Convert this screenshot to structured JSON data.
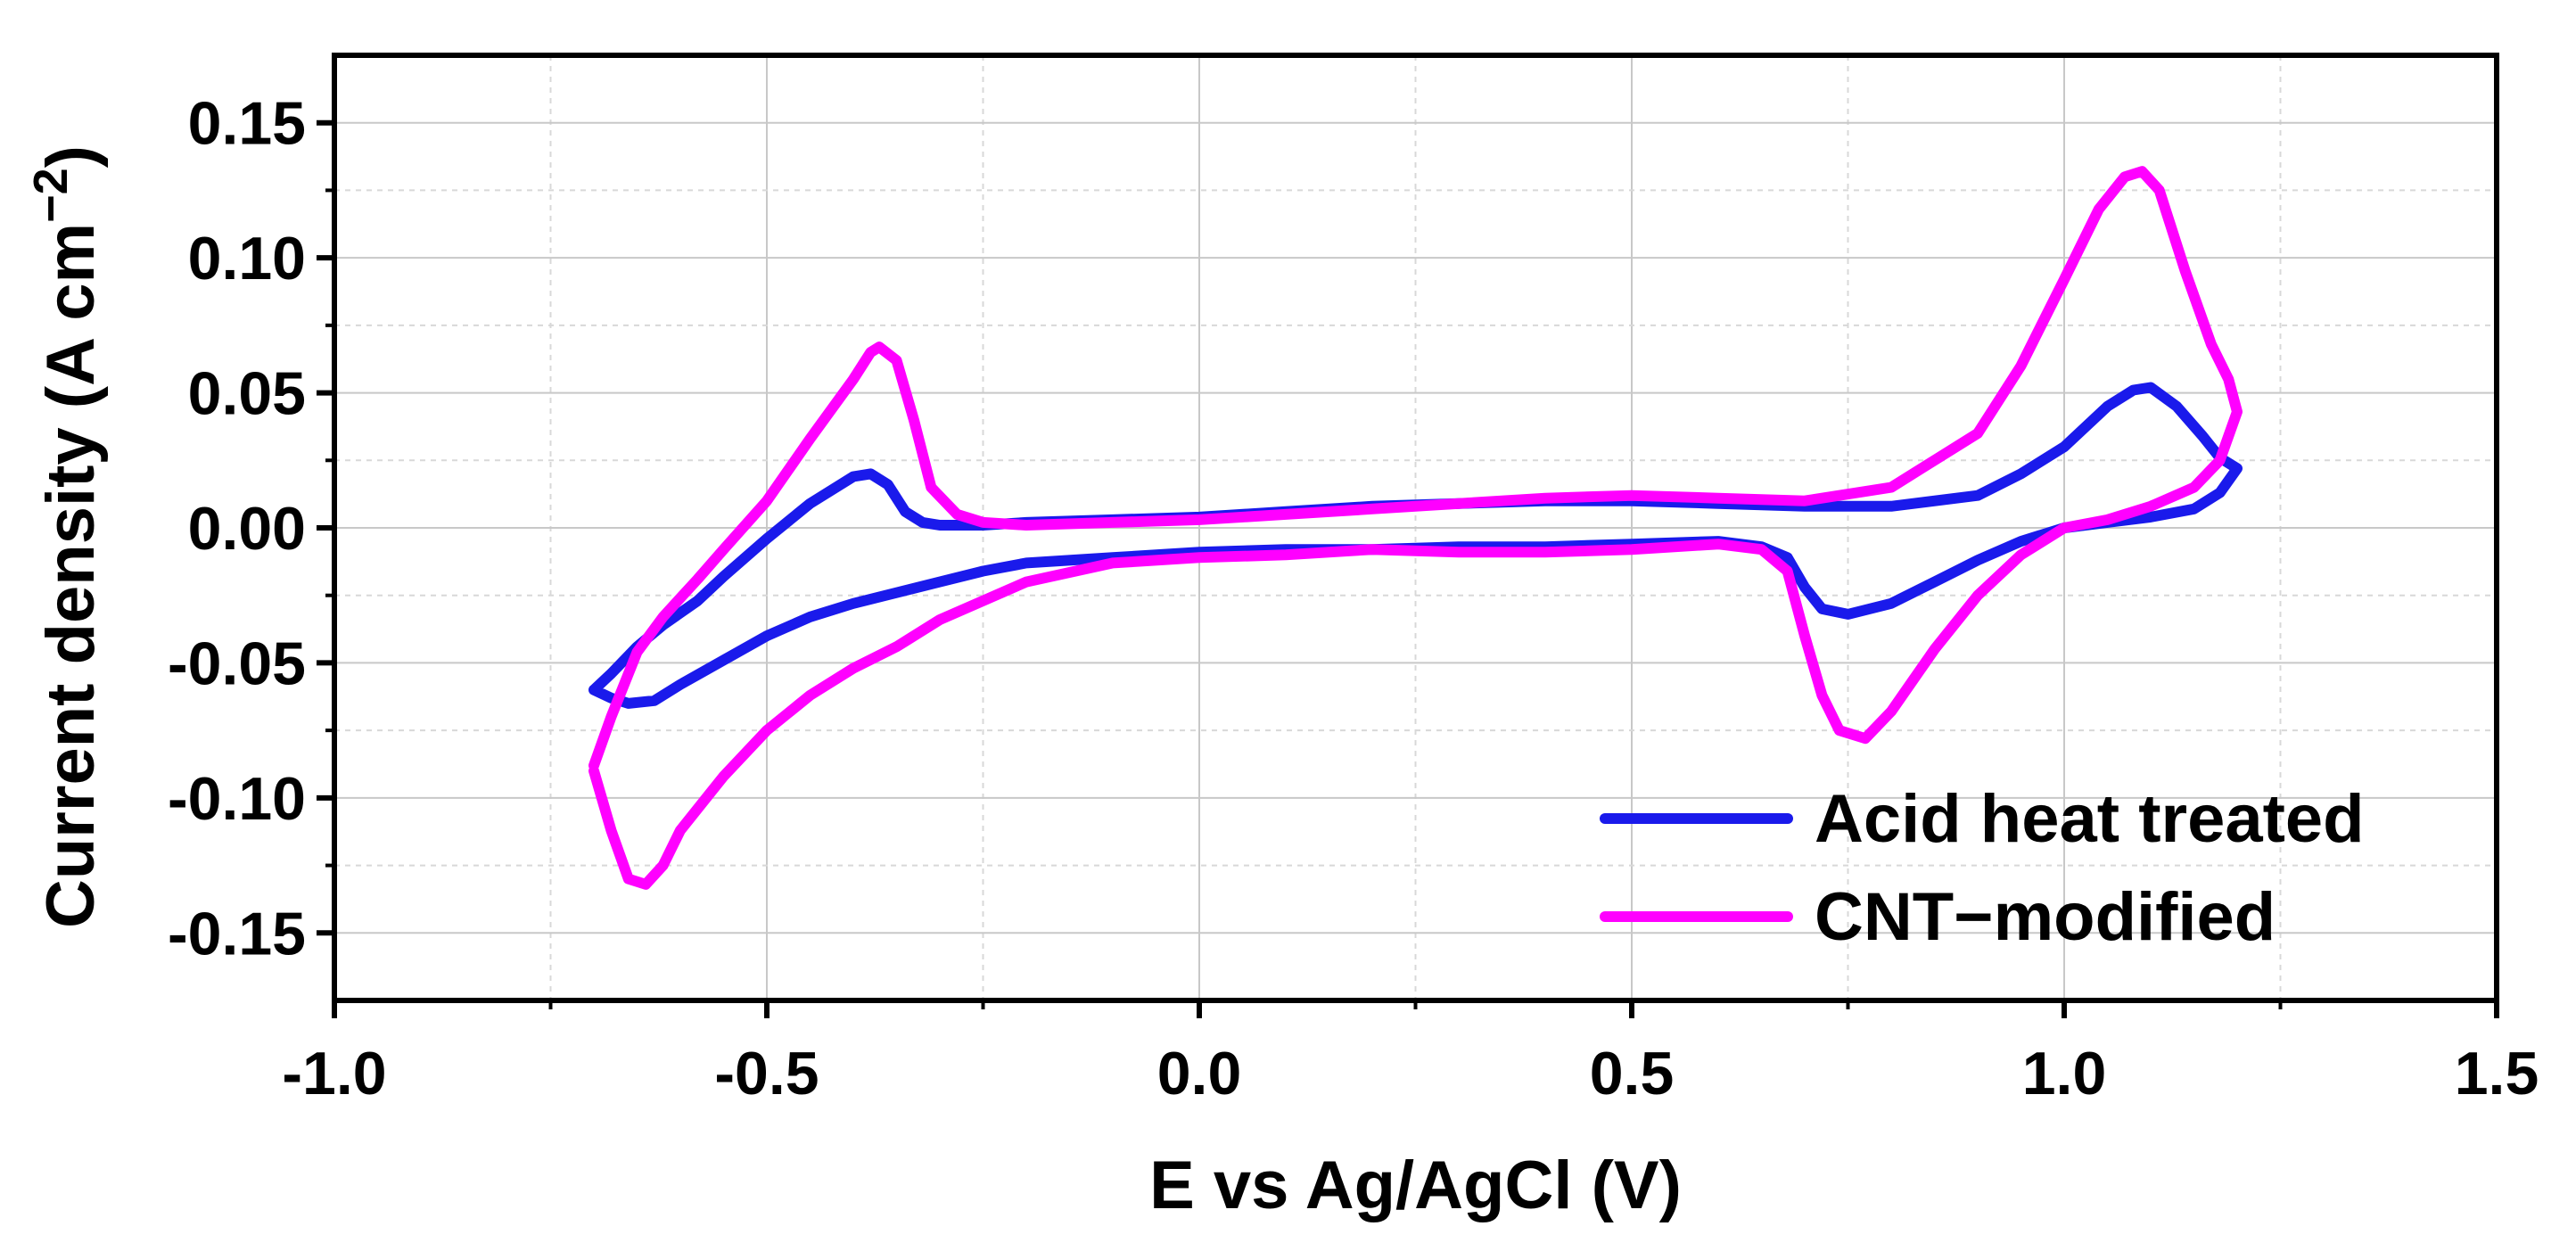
{
  "chart_data": {
    "type": "line",
    "title": "",
    "xlabel": "E vs Ag/AgCl (V)",
    "ylabel_main": "Current density (A cm",
    "ylabel_sup": "−2",
    "ylabel_close": ")",
    "xlim": [
      -1.0,
      1.5
    ],
    "ylim": [
      -0.175,
      0.175
    ],
    "x_ticks": [
      -1.0,
      -0.5,
      0.0,
      0.5,
      1.0,
      1.5
    ],
    "x_tick_labels": [
      "-1.0",
      "-0.5",
      "0.0",
      "0.5",
      "1.0",
      "1.5"
    ],
    "y_ticks": [
      -0.15,
      -0.1,
      -0.05,
      0.0,
      0.05,
      0.1,
      0.15
    ],
    "y_tick_labels": [
      "-0.15",
      "-0.10",
      "-0.05",
      "0.00",
      "0.05",
      "0.10",
      "0.15"
    ],
    "grid": true,
    "legend_position": "bottom-right",
    "series": [
      {
        "name": "Acid heat treated",
        "color": "#1a1aeb",
        "marker": "square",
        "x": [
          -0.7,
          -0.68,
          -0.65,
          -0.62,
          -0.58,
          -0.55,
          -0.5,
          -0.45,
          -0.4,
          -0.38,
          -0.36,
          -0.34,
          -0.32,
          -0.3,
          -0.25,
          -0.2,
          -0.1,
          0.0,
          0.1,
          0.2,
          0.3,
          0.4,
          0.5,
          0.6,
          0.7,
          0.8,
          0.9,
          0.95,
          1.0,
          1.05,
          1.08,
          1.1,
          1.13,
          1.16,
          1.18,
          1.2,
          1.18,
          1.15,
          1.1,
          1.05,
          1.0,
          0.95,
          0.9,
          0.85,
          0.8,
          0.75,
          0.72,
          0.7,
          0.68,
          0.65,
          0.6,
          0.5,
          0.4,
          0.3,
          0.2,
          0.1,
          0.0,
          -0.1,
          -0.2,
          -0.25,
          -0.3,
          -0.35,
          -0.4,
          -0.45,
          -0.5,
          -0.55,
          -0.6,
          -0.63,
          -0.66,
          -0.68,
          -0.7
        ],
        "y": [
          -0.06,
          -0.054,
          -0.044,
          -0.036,
          -0.027,
          -0.018,
          -0.004,
          0.009,
          0.019,
          0.02,
          0.016,
          0.006,
          0.002,
          0.001,
          0.001,
          0.002,
          0.003,
          0.004,
          0.006,
          0.008,
          0.009,
          0.01,
          0.01,
          0.009,
          0.008,
          0.008,
          0.012,
          0.02,
          0.03,
          0.045,
          0.051,
          0.052,
          0.045,
          0.034,
          0.026,
          0.022,
          0.013,
          0.007,
          0.004,
          0.002,
          0.0,
          -0.005,
          -0.012,
          -0.02,
          -0.028,
          -0.032,
          -0.03,
          -0.022,
          -0.011,
          -0.007,
          -0.005,
          -0.006,
          -0.007,
          -0.007,
          -0.008,
          -0.008,
          -0.009,
          -0.011,
          -0.013,
          -0.016,
          -0.02,
          -0.024,
          -0.028,
          -0.033,
          -0.04,
          -0.049,
          -0.058,
          -0.064,
          -0.065,
          -0.063,
          -0.06
        ]
      },
      {
        "name": "CNT−modified",
        "color": "#ff00ff",
        "marker": "circle",
        "x": [
          -0.7,
          -0.68,
          -0.65,
          -0.62,
          -0.58,
          -0.55,
          -0.5,
          -0.45,
          -0.4,
          -0.38,
          -0.37,
          -0.35,
          -0.33,
          -0.31,
          -0.28,
          -0.25,
          -0.2,
          -0.1,
          0.0,
          0.1,
          0.2,
          0.3,
          0.4,
          0.5,
          0.6,
          0.7,
          0.8,
          0.9,
          0.95,
          1.0,
          1.04,
          1.07,
          1.09,
          1.11,
          1.14,
          1.17,
          1.19,
          1.2,
          1.18,
          1.15,
          1.1,
          1.05,
          1.0,
          0.95,
          0.9,
          0.85,
          0.8,
          0.77,
          0.74,
          0.72,
          0.7,
          0.68,
          0.65,
          0.6,
          0.5,
          0.4,
          0.3,
          0.2,
          0.1,
          0.0,
          -0.1,
          -0.2,
          -0.3,
          -0.35,
          -0.4,
          -0.45,
          -0.5,
          -0.55,
          -0.6,
          -0.62,
          -0.64,
          -0.66,
          -0.68,
          -0.7
        ],
        "y": [
          -0.088,
          -0.07,
          -0.046,
          -0.033,
          -0.019,
          -0.008,
          0.01,
          0.033,
          0.055,
          0.065,
          0.067,
          0.062,
          0.04,
          0.015,
          0.005,
          0.002,
          0.001,
          0.002,
          0.003,
          0.005,
          0.007,
          0.009,
          0.011,
          0.012,
          0.011,
          0.01,
          0.015,
          0.035,
          0.06,
          0.092,
          0.118,
          0.13,
          0.132,
          0.125,
          0.095,
          0.068,
          0.055,
          0.043,
          0.025,
          0.015,
          0.008,
          0.003,
          0.0,
          -0.01,
          -0.025,
          -0.045,
          -0.068,
          -0.078,
          -0.075,
          -0.062,
          -0.04,
          -0.016,
          -0.008,
          -0.006,
          -0.008,
          -0.009,
          -0.009,
          -0.008,
          -0.01,
          -0.011,
          -0.013,
          -0.02,
          -0.034,
          -0.044,
          -0.052,
          -0.062,
          -0.075,
          -0.092,
          -0.112,
          -0.125,
          -0.132,
          -0.13,
          -0.112,
          -0.09
        ]
      }
    ]
  }
}
